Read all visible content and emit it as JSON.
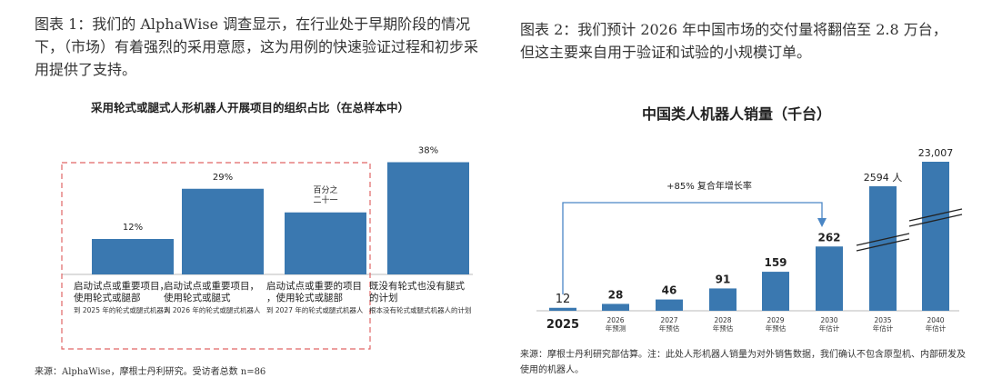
{
  "left": {
    "heading": "图表 1：我们的 AlphaWise 调查显示，在行业处于早期阶段的情况下，（市场）有着强烈的采用意愿，这为用例的快速验证过程和初步采用提供了支持。",
    "source": "来源：AlphaWise，摩根士丹利研究。受访者总数 n=86"
  },
  "right": {
    "heading": "图表 2：我们预计 2026 年中国市场的交付量将翻倍至 2.8 万台，但这主要来自用于验证和试验的小规模订单。",
    "source": "来源：摩根士丹利研究部估算。注：此处人形机器人销量为对外销售数据，我们确认不包含原型机、内部研发及使用的机器人。"
  },
  "chart_data": [
    {
      "type": "bar",
      "title": "采用轮式或腿式人形机器人开展项目的组织占比（在总样本中）",
      "categories": [
        "启动试点或重要项目，使用轮式或腿部",
        "启动试点或重要项目，使用轮式或腿式",
        "启动试点或重要的项目，使用轮式或腿部",
        "既没有轮式也没有腿式的计划"
      ],
      "category_sublabels": [
        "到 2025 年的轮式或腿式机器人",
        "到 2026 年的轮式或腿式机器人",
        "到 2027 年的轮式或腿式机器人",
        "根本没有轮式或腿式机器人的计划"
      ],
      "value_labels": [
        "12%",
        "29%",
        "百分之二十一",
        "38%"
      ],
      "values": [
        12,
        29,
        21,
        38
      ],
      "highlight_group": [
        0,
        1,
        2
      ],
      "bar_color": "#3a78b0",
      "highlight_color": "#e06666"
    },
    {
      "type": "bar",
      "title": "中国类人机器人销量（千台）",
      "categories": [
        "2025",
        "2026 年预测",
        "2027 年预估",
        "2028 年预估",
        "2029 年预估",
        "2030 年估计",
        "2035 年估计",
        "2040 年估计"
      ],
      "values": [
        12,
        28,
        46,
        91,
        159,
        262,
        2594,
        23007
      ],
      "value_labels": [
        "12",
        "28",
        "46",
        "91",
        "159",
        "262",
        "2594 人",
        "23,007"
      ],
      "axis_break_categories": [
        "2035 年估计",
        "2040 年估计"
      ],
      "annotation": "+85% 复合年增长率",
      "bar_color": "#3a78b0",
      "arrow_color": "#4a86c5"
    }
  ]
}
